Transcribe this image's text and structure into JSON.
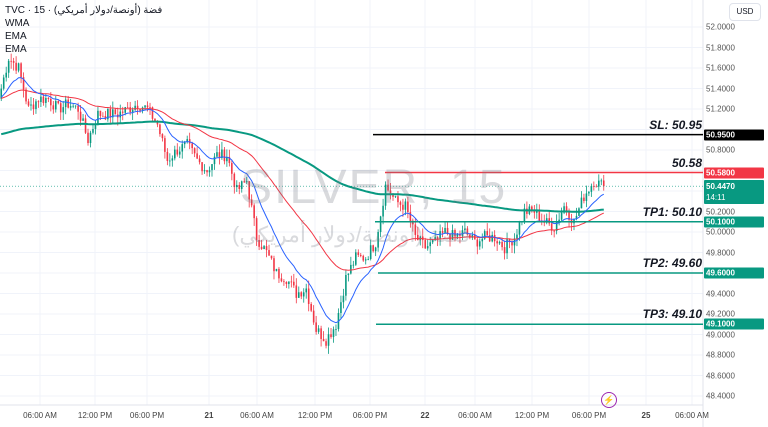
{
  "header": {
    "title": "TVC · 15 · فضة (أونصة/دولار أمريكي)",
    "indicators": [
      "WMA",
      "EMA",
      "EMA"
    ],
    "currency": "USD"
  },
  "watermark": {
    "symbol": "SILVER, 15",
    "name": "فضة (أونصة/دولار أمريكي)"
  },
  "chart_data": {
    "type": "candlestick",
    "interval": "15",
    "yaxis": {
      "ticks": [
        "52.0000",
        "51.8000",
        "51.6000",
        "51.4000",
        "51.2000",
        "50.8000",
        "50.2000",
        "50.0000",
        "49.8000",
        "49.4000",
        "49.2000",
        "49.0000",
        "48.8000",
        "48.6000",
        "48.4000"
      ],
      "ylim": [
        48.4,
        52.0
      ]
    },
    "xaxis": {
      "ticks": [
        "06:00 AM",
        "12:00 PM",
        "06:00 PM",
        "21",
        "06:00 AM",
        "12:00 PM",
        "06:00 PM",
        "22",
        "06:00 AM",
        "12:00 PM",
        "06:00 PM",
        "25",
        "06:00 AM"
      ]
    },
    "approx_hourly_close": [
      51.3,
      51.7,
      51.6,
      51.2,
      51.3,
      51.3,
      51.2,
      51.25,
      51.2,
      50.9,
      51.15,
      51.15,
      51.15,
      51.2,
      51.25,
      51.2,
      51.05,
      50.7,
      50.8,
      50.85,
      50.7,
      50.6,
      50.75,
      50.75,
      50.4,
      50.5,
      49.95,
      49.8,
      49.6,
      49.55,
      49.4,
      49.45,
      49.05,
      48.95,
      49.1,
      49.55,
      49.75,
      49.75,
      49.9,
      50.45,
      50.3,
      50.25,
      49.95,
      49.85,
      49.9,
      50.0,
      49.95,
      50.0,
      49.9,
      49.95,
      49.95,
      49.85,
      49.95,
      50.2,
      50.2,
      50.1,
      50.05,
      50.25,
      50.1,
      50.35,
      50.5,
      50.447
    ],
    "last_price": "50.4470",
    "countdown": "14:11",
    "levels": [
      {
        "label": "SL: 50.95",
        "value": 50.95,
        "tag": "50.9500",
        "color": "#000000"
      },
      {
        "label": "50.58",
        "value": 50.58,
        "tag": "50.5800",
        "color": "#f23645"
      },
      {
        "label": "TP1: 50.10",
        "value": 50.1,
        "tag": "50.1000",
        "color": "#089981"
      },
      {
        "label": "TP2: 49.60",
        "value": 49.6,
        "tag": "49.6000",
        "color": "#089981"
      },
      {
        "label": "TP3: 49.10",
        "value": 49.1,
        "tag": "49.1000",
        "color": "#089981"
      }
    ],
    "colors": {
      "up": "#089981",
      "down": "#f23645",
      "wma": "#2962ff",
      "ema_fast": "#f23645",
      "ema_slow": "#089981",
      "last_price": "#089981"
    }
  },
  "icons": {
    "event": "lightning-icon"
  }
}
